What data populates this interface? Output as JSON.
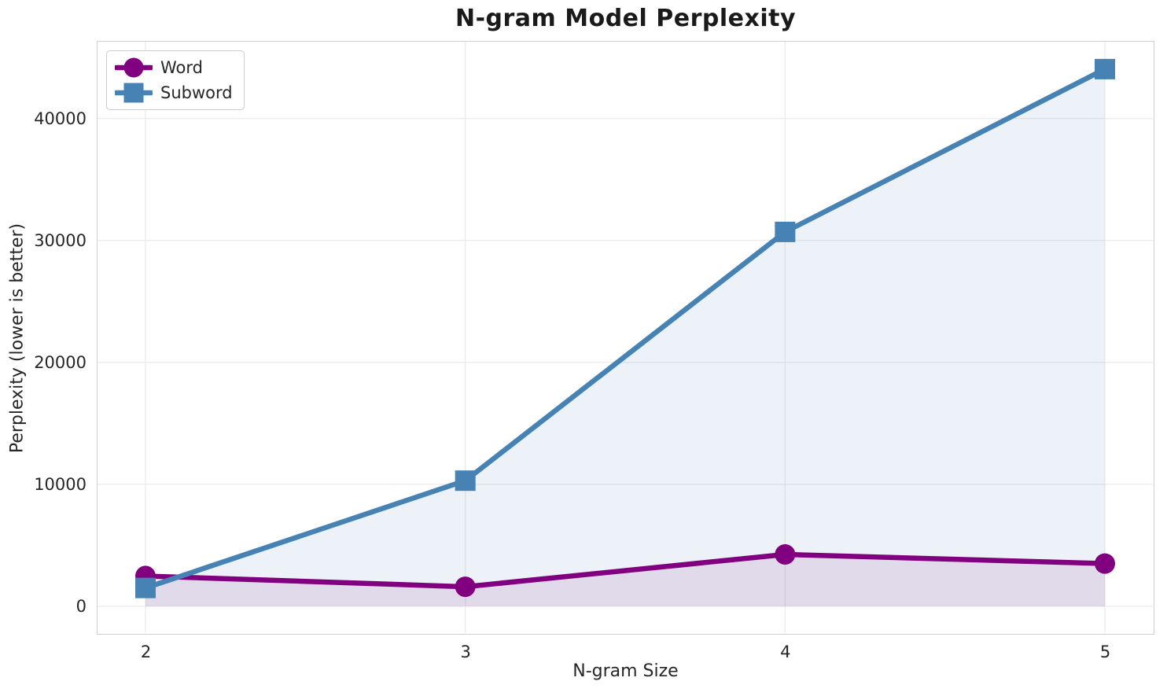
{
  "chart_data": {
    "type": "line",
    "title": "N-gram Model Perplexity",
    "xlabel": "N-gram Size",
    "ylabel": "Perplexity (lower is better)",
    "x": [
      2,
      3,
      4,
      5
    ],
    "xtick_labels": [
      "2",
      "3",
      "4",
      "5"
    ],
    "ytick_values": [
      0,
      10000,
      20000,
      30000,
      40000
    ],
    "ytick_labels": [
      "0",
      "10000",
      "20000",
      "30000",
      "40000"
    ],
    "xlim": [
      1.85,
      5.15
    ],
    "ylim": [
      -2200,
      46300
    ],
    "grid": true,
    "legend_position": "upper left",
    "series": [
      {
        "name": "Word",
        "color": "#800080",
        "marker": "circle",
        "values": [
          2480,
          1600,
          4250,
          3500
        ],
        "fill_to_zero": true,
        "fill_alpha": 0.1
      },
      {
        "name": "Subword",
        "color": "#4682B4",
        "marker": "square",
        "values": [
          1500,
          10300,
          30700,
          44050
        ],
        "fill_to_zero": true,
        "fill_alpha": 0.1
      }
    ]
  },
  "colors": {
    "background": "#ffffff",
    "grid": "#ececec",
    "axes_edge": "#cfcfcf",
    "text": "#262626",
    "title_text": "#1a1a1a"
  }
}
